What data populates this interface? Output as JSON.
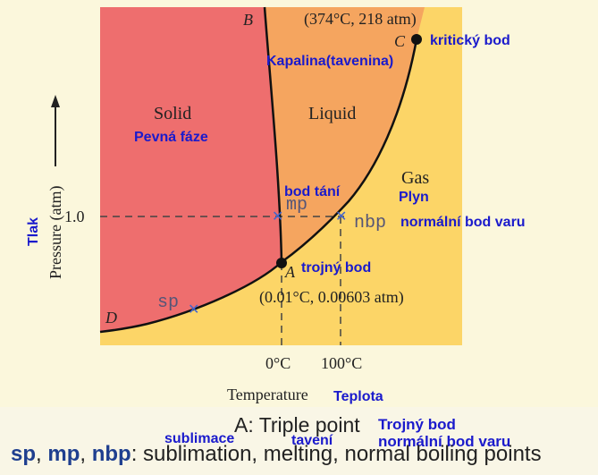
{
  "diagram": {
    "regions": {
      "solid": {
        "label": "Solid",
        "translation": "Pevná fáze",
        "color": "#ee6e6e"
      },
      "liquid": {
        "label": "Liquid",
        "translation": "Kapalina(tavenina)",
        "color": "#f5a55f"
      },
      "gas": {
        "label": "Gas",
        "translation": "Plyn",
        "color": "#fcd567"
      }
    },
    "axes": {
      "y_label": "Pressure (atm)",
      "y_translation": "Tlak",
      "y_tick": "1.0",
      "x_label": "Temperature",
      "x_translation": "Teplota",
      "x_ticks": [
        "0°C",
        "100°C"
      ]
    },
    "points": {
      "A": {
        "letter": "A",
        "coords": "(0.01°C, 0.00603 atm)",
        "translation": "trojný bod"
      },
      "B": {
        "letter": "B"
      },
      "C": {
        "letter": "C",
        "coords": "(374°C, 218 atm)",
        "translation": "kritický bod"
      },
      "D": {
        "letter": "D"
      },
      "sp": {
        "abbr": "sp"
      },
      "mp": {
        "abbr": "mp",
        "translation": "bod tání"
      },
      "nbp": {
        "abbr": "nbp",
        "translation": "normální bod varu"
      }
    },
    "legend": {
      "triple_label": "A: Triple point",
      "triple_translation": "Trojný bod",
      "nbp_translation": "normální bod varu",
      "abbr_sp": "sp",
      "abbr_mp": "mp",
      "abbr_nbp": "nbp",
      "sep": ", ",
      "colon": ":",
      "meanings": "sublimation, melting, normal boiling points",
      "sp_translation": "sublimace",
      "mp_translation": "tavení"
    },
    "colors": {
      "line": "#111111",
      "dashed": "#444444",
      "marker": "#4466cc",
      "annotation": "#1a1acc",
      "background": "#fbf7dc"
    }
  }
}
